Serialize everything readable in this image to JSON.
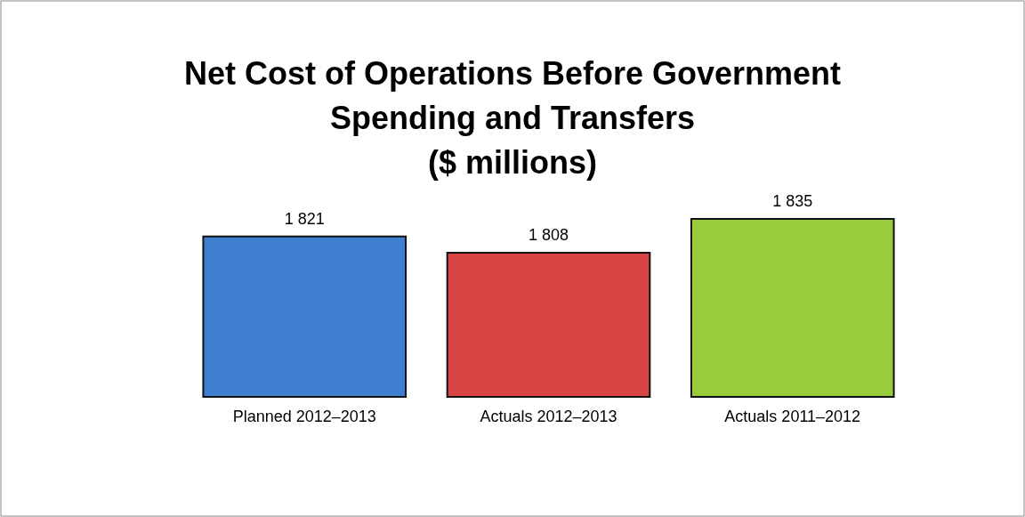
{
  "chart_data": {
    "type": "bar",
    "title": "Net Cost of Operations Before Government\nSpending and Transfers\n($ millions)",
    "categories": [
      "Planned 2012–2013",
      "Actuals 2012–2013",
      "Actuals 2011–2012"
    ],
    "values": [
      1821,
      1808,
      1835
    ],
    "colors": [
      "#3f7fd0",
      "#d94444",
      "#99cc3c"
    ],
    "value_labels": [
      "1 821",
      "1 808",
      "1 835"
    ],
    "ylim": [
      1693,
      1835
    ]
  }
}
